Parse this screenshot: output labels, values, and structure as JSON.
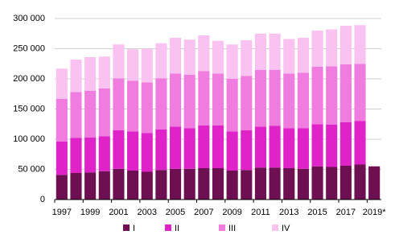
{
  "chart_data": {
    "type": "stacked_bar",
    "categories": [
      "1997",
      null,
      "1999",
      null,
      "2001",
      null,
      "2003",
      null,
      "2005",
      null,
      "2007",
      null,
      "2009",
      null,
      "2011",
      null,
      "2013",
      null,
      "2015",
      null,
      "2017",
      null,
      "2019*"
    ],
    "series": [
      {
        "name": "I",
        "color": "#6d0f50",
        "values": [
          41000,
          44000,
          45000,
          47000,
          51000,
          48000,
          46000,
          49000,
          51000,
          51000,
          52000,
          52000,
          48000,
          49000,
          53000,
          53000,
          52000,
          51000,
          55000,
          54000,
          56000,
          58000,
          55000
        ]
      },
      {
        "name": "II",
        "color": "#e023c8",
        "values": [
          55000,
          58000,
          58000,
          58000,
          64000,
          65000,
          64000,
          67000,
          70000,
          67000,
          71000,
          71000,
          65000,
          66000,
          68000,
          69000,
          66000,
          67000,
          70000,
          70000,
          72000,
          72000,
          null
        ]
      },
      {
        "name": "III",
        "color": "#f07ce0",
        "values": [
          71000,
          76000,
          77000,
          79000,
          86000,
          84000,
          84000,
          85000,
          88000,
          89000,
          90000,
          86000,
          87000,
          90000,
          94000,
          93000,
          91000,
          92000,
          95000,
          97000,
          96000,
          95000,
          null
        ]
      },
      {
        "name": "IV",
        "color": "#f9c2f1",
        "values": [
          50000,
          54000,
          56000,
          53000,
          56000,
          52000,
          56000,
          58000,
          59000,
          58000,
          59000,
          54000,
          57000,
          59000,
          60000,
          60000,
          57000,
          58000,
          60000,
          61000,
          64000,
          64000,
          null
        ]
      }
    ],
    "ylim": [
      0,
      300000
    ],
    "yticks": [
      {
        "value": 0,
        "label": "0"
      },
      {
        "value": 50000,
        "label": "50 000"
      },
      {
        "value": 100000,
        "label": "100 000"
      },
      {
        "value": 150000,
        "label": "150 000"
      },
      {
        "value": 200000,
        "label": "200 000"
      },
      {
        "value": 250000,
        "label": "250 000"
      },
      {
        "value": 300000,
        "label": "300 000"
      }
    ],
    "grid": true
  }
}
